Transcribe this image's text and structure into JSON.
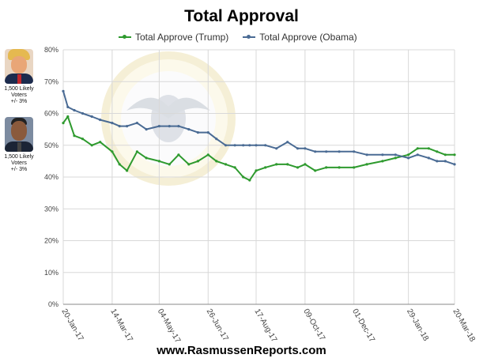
{
  "title": "Total Approval",
  "footer": "www.RasmussenReports.com",
  "portraits": {
    "trump": {
      "caption_lines": [
        "1,500 Likely",
        "Voters",
        "+/- 3%"
      ]
    },
    "obama": {
      "caption_lines": [
        "1,500 Likely",
        "Voters",
        "+/- 3%"
      ]
    }
  },
  "colors": {
    "trump": "#2e9a2e",
    "obama": "#4a6b94",
    "grid": "#d8d8d8",
    "axis": "#555555"
  },
  "chart_data": {
    "type": "line",
    "title": "Total Approval",
    "xlabel": "",
    "ylabel": "",
    "ylim": [
      0,
      80
    ],
    "y_ticks": [
      "0%",
      "10%",
      "20%",
      "30%",
      "40%",
      "50%",
      "60%",
      "70%",
      "80%"
    ],
    "x_ticks": [
      "20-Jan-17",
      "14-Mar-17",
      "04-May-17",
      "26-Jun-17",
      "17-Aug-17",
      "09-Oct-17",
      "01-Dec-17",
      "29-Jan-18",
      "20-Mar-18"
    ],
    "grid": true,
    "legend_position": "top",
    "series": [
      {
        "name": "Total Approve (Trump)",
        "color": "#2e9a2e",
        "points": [
          [
            "2017-01-20",
            57
          ],
          [
            "2017-01-25",
            59
          ],
          [
            "2017-02-01",
            53
          ],
          [
            "2017-02-10",
            52
          ],
          [
            "2017-02-20",
            50
          ],
          [
            "2017-03-01",
            51
          ],
          [
            "2017-03-14",
            48
          ],
          [
            "2017-03-22",
            44
          ],
          [
            "2017-03-30",
            42
          ],
          [
            "2017-04-10",
            48
          ],
          [
            "2017-04-20",
            46
          ],
          [
            "2017-05-04",
            45
          ],
          [
            "2017-05-15",
            44
          ],
          [
            "2017-05-25",
            47
          ],
          [
            "2017-06-05",
            44
          ],
          [
            "2017-06-15",
            45
          ],
          [
            "2017-06-26",
            47
          ],
          [
            "2017-07-05",
            45
          ],
          [
            "2017-07-15",
            44
          ],
          [
            "2017-07-25",
            43
          ],
          [
            "2017-08-03",
            40
          ],
          [
            "2017-08-10",
            39
          ],
          [
            "2017-08-17",
            42
          ],
          [
            "2017-08-27",
            43
          ],
          [
            "2017-09-08",
            44
          ],
          [
            "2017-09-20",
            44
          ],
          [
            "2017-10-01",
            43
          ],
          [
            "2017-10-09",
            44
          ],
          [
            "2017-10-20",
            42
          ],
          [
            "2017-11-01",
            43
          ],
          [
            "2017-11-15",
            43
          ],
          [
            "2017-12-01",
            43
          ],
          [
            "2017-12-15",
            44
          ],
          [
            "2018-01-01",
            45
          ],
          [
            "2018-01-15",
            46
          ],
          [
            "2018-01-29",
            47
          ],
          [
            "2018-02-08",
            49
          ],
          [
            "2018-02-20",
            49
          ],
          [
            "2018-03-01",
            48
          ],
          [
            "2018-03-10",
            47
          ],
          [
            "2018-03-20",
            47
          ]
        ]
      },
      {
        "name": "Total Approve (Obama)",
        "color": "#4a6b94",
        "points": [
          [
            "2017-01-20",
            67
          ],
          [
            "2017-01-25",
            62
          ],
          [
            "2017-02-01",
            61
          ],
          [
            "2017-02-10",
            60
          ],
          [
            "2017-02-20",
            59
          ],
          [
            "2017-03-01",
            58
          ],
          [
            "2017-03-14",
            57
          ],
          [
            "2017-03-22",
            56
          ],
          [
            "2017-03-30",
            56
          ],
          [
            "2017-04-10",
            57
          ],
          [
            "2017-04-20",
            55
          ],
          [
            "2017-05-04",
            56
          ],
          [
            "2017-05-15",
            56
          ],
          [
            "2017-05-25",
            56
          ],
          [
            "2017-06-05",
            55
          ],
          [
            "2017-06-15",
            54
          ],
          [
            "2017-06-26",
            54
          ],
          [
            "2017-07-05",
            52
          ],
          [
            "2017-07-15",
            50
          ],
          [
            "2017-07-25",
            50
          ],
          [
            "2017-08-03",
            50
          ],
          [
            "2017-08-10",
            50
          ],
          [
            "2017-08-17",
            50
          ],
          [
            "2017-08-27",
            50
          ],
          [
            "2017-09-08",
            49
          ],
          [
            "2017-09-20",
            51
          ],
          [
            "2017-10-01",
            49
          ],
          [
            "2017-10-09",
            49
          ],
          [
            "2017-10-20",
            48
          ],
          [
            "2017-11-01",
            48
          ],
          [
            "2017-11-15",
            48
          ],
          [
            "2017-12-01",
            48
          ],
          [
            "2017-12-15",
            47
          ],
          [
            "2018-01-01",
            47
          ],
          [
            "2018-01-15",
            47
          ],
          [
            "2018-01-29",
            46
          ],
          [
            "2018-02-08",
            47
          ],
          [
            "2018-02-20",
            46
          ],
          [
            "2018-03-01",
            45
          ],
          [
            "2018-03-10",
            45
          ],
          [
            "2018-03-20",
            44
          ]
        ]
      }
    ]
  }
}
